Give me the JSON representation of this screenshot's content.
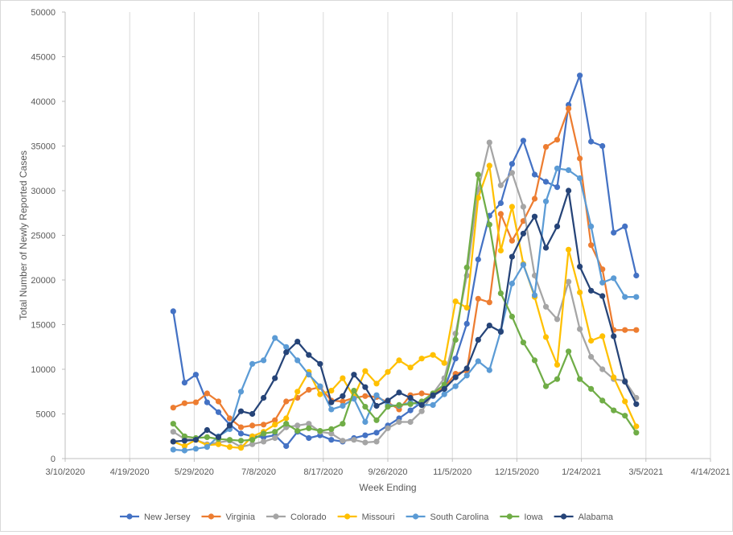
{
  "chart_data": {
    "type": "line",
    "title": "",
    "xlabel": "Week Ending",
    "ylabel": "Total Number  of Newly Reported Cases",
    "x_tick_labels": [
      "3/10/2020",
      "4/19/2020",
      "5/29/2020",
      "7/8/2020",
      "8/17/2020",
      "9/26/2020",
      "11/5/2020",
      "12/15/2020",
      "1/24/2021",
      "3/5/2021",
      "4/14/2021"
    ],
    "y_tick_labels": [
      "0",
      "5000",
      "10000",
      "15000",
      "20000",
      "25000",
      "30000",
      "35000",
      "40000",
      "45000",
      "50000"
    ],
    "xlim": [
      "3/10/2020",
      "4/14/2021"
    ],
    "ylim": [
      0,
      50000
    ],
    "grid": "vertical",
    "legend_position": "bottom",
    "x": [
      "5/16/2020",
      "5/23/2020",
      "5/30/2020",
      "6/6/2020",
      "6/13/2020",
      "6/20/2020",
      "6/27/2020",
      "7/4/2020",
      "7/11/2020",
      "7/18/2020",
      "7/25/2020",
      "8/1/2020",
      "8/8/2020",
      "8/15/2020",
      "8/22/2020",
      "8/29/2020",
      "9/5/2020",
      "9/12/2020",
      "9/19/2020",
      "9/26/2020",
      "10/3/2020",
      "10/10/2020",
      "10/17/2020",
      "10/24/2020",
      "10/31/2020",
      "11/7/2020",
      "11/14/2020",
      "11/21/2020",
      "11/28/2020",
      "12/5/2020",
      "12/12/2020",
      "12/19/2020",
      "12/26/2020",
      "1/2/2021",
      "1/9/2021",
      "1/16/2021",
      "1/23/2021",
      "1/30/2021",
      "2/6/2021",
      "2/13/2021",
      "2/20/2021",
      "2/27/2021"
    ],
    "series": [
      {
        "name": "New Jersey",
        "color": "#4472c4",
        "values": [
          16500,
          8500,
          9400,
          6300,
          5200,
          3800,
          2800,
          2500,
          2400,
          2600,
          1400,
          3000,
          2300,
          2600,
          2100,
          1900,
          2300,
          2600,
          2900,
          3700,
          4500,
          5400,
          6300,
          7000,
          7800,
          11200,
          15100,
          22300,
          27200,
          28600,
          33000,
          35600,
          31800,
          31000,
          30400,
          39600,
          42900,
          35500,
          35000,
          25300,
          26000,
          20500
        ]
      },
      {
        "name": "Virginia",
        "color": "#ed7d31",
        "values": [
          5700,
          6200,
          6300,
          7300,
          6400,
          4500,
          3500,
          3700,
          3800,
          4300,
          6400,
          6800,
          7700,
          8000,
          6500,
          6400,
          6800,
          7000,
          6900,
          6300,
          5500,
          7100,
          7300,
          7100,
          8000,
          9500,
          9800,
          17900,
          17500,
          27400,
          24400,
          26600,
          29100,
          34900,
          35700,
          39200,
          33600,
          23900,
          21200,
          14400,
          14400,
          14400
        ]
      },
      {
        "name": "Colorado",
        "color": "#a5a5a5",
        "values": [
          3000,
          2200,
          2100,
          1600,
          1800,
          2000,
          1300,
          1600,
          1900,
          2300,
          3500,
          3700,
          3900,
          3000,
          2800,
          2000,
          2100,
          1800,
          1900,
          3400,
          4100,
          4100,
          5300,
          7300,
          9000,
          14000,
          20500,
          30100,
          35400,
          30600,
          32000,
          28200,
          20500,
          17000,
          15600,
          19800,
          14500,
          11400,
          10000,
          8900,
          8700,
          6800
        ]
      },
      {
        "name": "Missouri",
        "color": "#ffc000",
        "values": [
          1900,
          1400,
          2100,
          1500,
          1600,
          1300,
          1200,
          2500,
          3000,
          3800,
          4500,
          7500,
          9700,
          7200,
          7600,
          9000,
          6900,
          9800,
          8400,
          9700,
          11000,
          10200,
          11200,
          11600,
          10700,
          17600,
          16900,
          29200,
          32800,
          23300,
          28200,
          21800,
          18100,
          13600,
          10500,
          23400,
          18600,
          13200,
          13700,
          9100,
          6400,
          3600
        ]
      },
      {
        "name": "South Carolina",
        "color": "#5b9bd5",
        "values": [
          1000,
          900,
          1100,
          1300,
          2500,
          3300,
          7500,
          10600,
          11000,
          13500,
          12500,
          11000,
          9400,
          8100,
          5500,
          5900,
          6700,
          4100,
          7100,
          6000,
          5900,
          6300,
          6000,
          6000,
          7200,
          8100,
          9300,
          10900,
          9900,
          14300,
          19600,
          21700,
          18300,
          28800,
          32500,
          32300,
          31400,
          26000,
          19700,
          20200,
          18100,
          18100
        ]
      },
      {
        "name": "Iowa",
        "color": "#70ad47",
        "values": [
          3900,
          2500,
          2300,
          2400,
          2200,
          2100,
          2000,
          2100,
          2800,
          3000,
          3900,
          3100,
          3400,
          3100,
          3300,
          3900,
          7600,
          5800,
          4300,
          5800,
          6000,
          6100,
          6400,
          7300,
          8300,
          13300,
          21400,
          31800,
          26200,
          18500,
          15900,
          13000,
          11000,
          8100,
          8900,
          12000,
          8900,
          7800,
          6500,
          5400,
          4800,
          2900
        ]
      },
      {
        "name": "Alabama",
        "color": "#264478",
        "values": [
          1900,
          2000,
          2100,
          3200,
          2400,
          3700,
          5300,
          5000,
          6800,
          9000,
          11900,
          13100,
          11600,
          10600,
          6300,
          7000,
          9400,
          8000,
          5900,
          6500,
          7400,
          6800,
          6000,
          7100,
          7800,
          9100,
          10100,
          13300,
          14900,
          14200,
          22600,
          25200,
          27100,
          23600,
          26000,
          30000,
          21500,
          18800,
          18200,
          13700,
          8600,
          6100
        ]
      }
    ]
  }
}
